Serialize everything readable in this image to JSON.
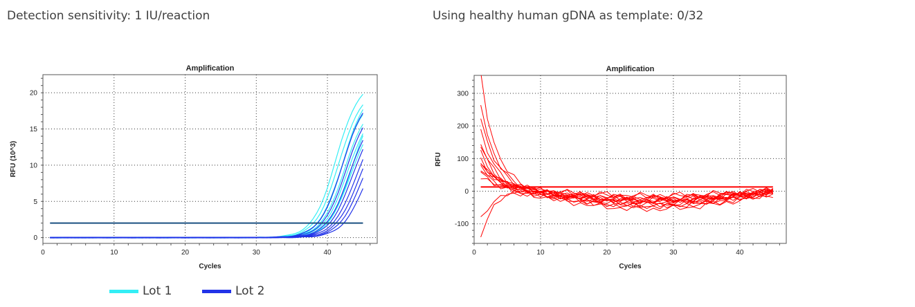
{
  "captions": {
    "left": "Detection sensitivity: 1 IU/reaction",
    "right": "Using healthy human gDNA as template: 0/32"
  },
  "legend": [
    {
      "label": "Lot 1",
      "color": "#33eef5"
    },
    {
      "label": "Lot 2",
      "color": "#2233e8"
    }
  ],
  "chart_data": [
    {
      "type": "line",
      "title": "Amplification",
      "xlabel": "Cycles",
      "ylabel": "RFU (10^3)",
      "xlim": [
        0,
        47
      ],
      "ylim": [
        -0.8,
        22.5
      ],
      "xticks": [
        0,
        10,
        20,
        30,
        40
      ],
      "yticks": [
        0,
        5,
        10,
        15,
        20
      ],
      "grid": true,
      "threshold": 2,
      "threshold_color": "#1a4f80",
      "series": [
        {
          "group": "Lot 1",
          "color": "#33eef5",
          "ct": 38.0,
          "max": 21.6
        },
        {
          "group": "Lot 1",
          "color": "#33eef5",
          "ct": 38.4,
          "max": 20.5
        },
        {
          "group": "Lot 1",
          "color": "#33eef5",
          "ct": 38.8,
          "max": 19.6
        },
        {
          "group": "Lot 1",
          "color": "#33eef5",
          "ct": 39.2,
          "max": 18.8
        },
        {
          "group": "Lot 1",
          "color": "#33eef5",
          "ct": 39.0,
          "max": 20.8
        },
        {
          "group": "Lot 1",
          "color": "#33eef5",
          "ct": 39.6,
          "max": 18.0
        },
        {
          "group": "Lot 1",
          "color": "#33eef5",
          "ct": 40.0,
          "max": 17.0
        },
        {
          "group": "Lot 1",
          "color": "#33eef5",
          "ct": 40.2,
          "max": 19.2
        },
        {
          "group": "Lot 2",
          "color": "#2233e8",
          "ct": 38.9,
          "max": 20.0
        },
        {
          "group": "Lot 2",
          "color": "#2233e8",
          "ct": 39.4,
          "max": 18.6
        },
        {
          "group": "Lot 2",
          "color": "#2233e8",
          "ct": 39.9,
          "max": 17.6
        },
        {
          "group": "Lot 2",
          "color": "#2233e8",
          "ct": 40.3,
          "max": 17.0
        },
        {
          "group": "Lot 2",
          "color": "#2233e8",
          "ct": 40.7,
          "max": 16.2
        },
        {
          "group": "Lot 2",
          "color": "#2233e8",
          "ct": 41.1,
          "max": 15.6
        },
        {
          "group": "Lot 2",
          "color": "#2233e8",
          "ct": 41.5,
          "max": 15.0
        },
        {
          "group": "Lot 2",
          "color": "#2233e8",
          "ct": 42.0,
          "max": 14.5
        }
      ]
    },
    {
      "type": "line",
      "title": "Amplification",
      "xlabel": "Cycles",
      "ylabel": "RFU",
      "xlim": [
        0,
        47
      ],
      "ylim": [
        -160,
        355
      ],
      "xticks": [
        0,
        10,
        20,
        30,
        40
      ],
      "yticks": [
        -100,
        0,
        100,
        200,
        300
      ],
      "grid": true,
      "threshold": 13,
      "threshold_color": "#ff0000",
      "line_color": "#ff0000",
      "series": [
        {
          "start": 340,
          "offset": 0,
          "tilt": 30
        },
        {
          "start": 260,
          "offset": -5,
          "tilt": 25
        },
        {
          "start": 210,
          "offset": 5,
          "tilt": 28
        },
        {
          "start": 170,
          "offset": -10,
          "tilt": 35
        },
        {
          "start": 130,
          "offset": 10,
          "tilt": 20
        },
        {
          "start": 120,
          "offset": -15,
          "tilt": 40
        },
        {
          "start": 100,
          "offset": 0,
          "tilt": 30
        },
        {
          "start": 90,
          "offset": -20,
          "tilt": 38
        },
        {
          "start": 80,
          "offset": 5,
          "tilt": 22
        },
        {
          "start": 70,
          "offset": -8,
          "tilt": 32
        },
        {
          "start": 60,
          "offset": 12,
          "tilt": 18
        },
        {
          "start": 50,
          "offset": -25,
          "tilt": 45
        },
        {
          "start": 40,
          "offset": 0,
          "tilt": 28
        },
        {
          "start": -100,
          "offset": -5,
          "tilt": 30
        },
        {
          "start": -150,
          "offset": 8,
          "tilt": 24
        },
        {
          "start": 30,
          "offset": -12,
          "tilt": 36
        }
      ]
    }
  ]
}
